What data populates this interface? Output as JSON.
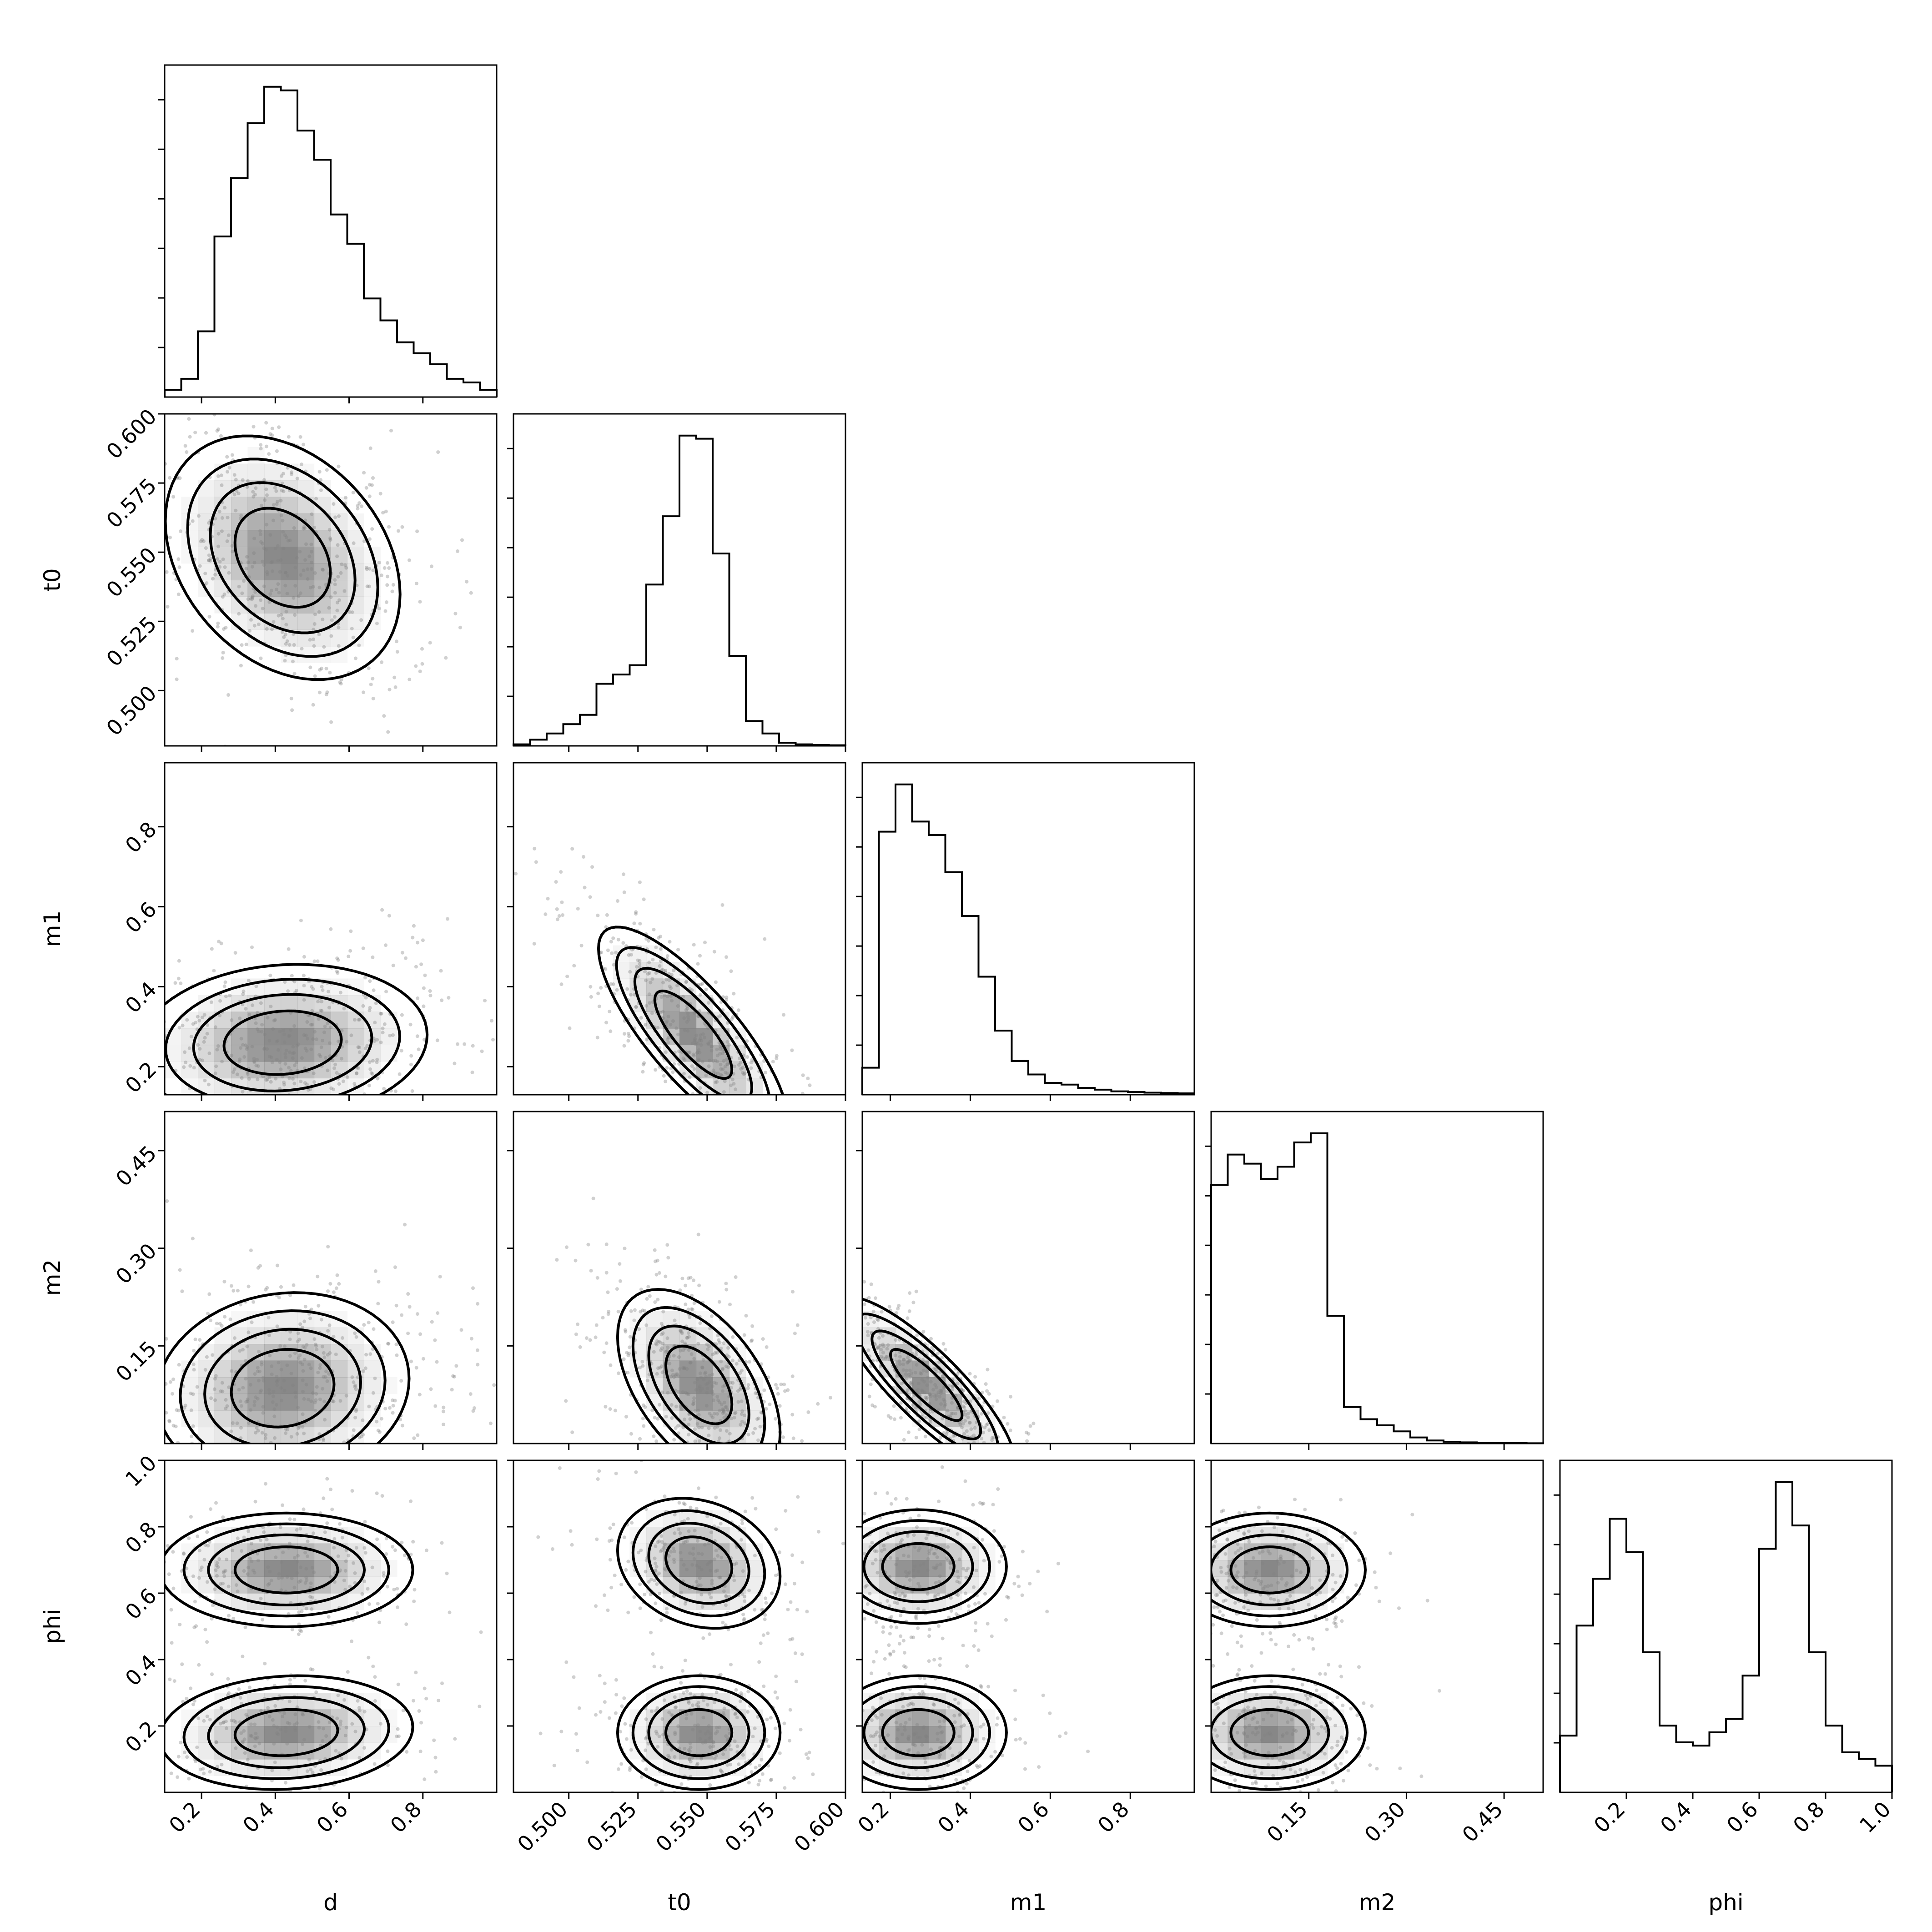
{
  "chart_data": {
    "type": "corner",
    "parameters": [
      {
        "name": "d",
        "range": [
          0.1,
          1.0
        ],
        "ticks": [
          0.2,
          0.4,
          0.6,
          0.8
        ],
        "tick_labels": [
          "0.2",
          "0.4",
          "0.6",
          "0.8"
        ]
      },
      {
        "name": "t0",
        "range": [
          0.48,
          0.6
        ],
        "ticks": [
          0.5,
          0.525,
          0.55,
          0.575,
          0.6
        ],
        "tick_labels": [
          "0.500",
          "0.525",
          "0.550",
          "0.575",
          "0.600"
        ]
      },
      {
        "name": "m1",
        "range": [
          0.13,
          0.96
        ],
        "ticks": [
          0.2,
          0.4,
          0.6,
          0.8
        ],
        "tick_labels": [
          "0.2",
          "0.4",
          "0.6",
          "0.8"
        ]
      },
      {
        "name": "m2",
        "range": [
          0.0,
          0.51
        ],
        "ticks": [
          0.15,
          0.3,
          0.45
        ],
        "tick_labels": [
          "0.15",
          "0.30",
          "0.45"
        ]
      },
      {
        "name": "phi",
        "range": [
          0.0,
          1.0
        ],
        "ticks": [
          0.2,
          0.4,
          0.6,
          0.8,
          1.0
        ],
        "tick_labels": [
          "0.2",
          "0.4",
          "0.6",
          "0.8",
          "1.0"
        ]
      }
    ],
    "histograms": [
      {
        "param": "d",
        "edges_range": [
          0.1,
          1.0
        ],
        "counts": [
          0.02,
          0.05,
          0.18,
          0.44,
          0.6,
          0.75,
          0.85,
          0.84,
          0.73,
          0.65,
          0.5,
          0.42,
          0.27,
          0.21,
          0.15,
          0.12,
          0.09,
          0.05,
          0.04,
          0.02
        ]
      },
      {
        "param": "t0",
        "edges_range": [
          0.48,
          0.6
        ],
        "counts": [
          0.005,
          0.02,
          0.04,
          0.07,
          0.1,
          0.2,
          0.23,
          0.26,
          0.52,
          0.74,
          1.0,
          0.99,
          0.62,
          0.29,
          0.08,
          0.04,
          0.01,
          0.005,
          0.003,
          0.002
        ]
      },
      {
        "param": "m1",
        "edges_range": [
          0.13,
          0.96
        ],
        "counts": [
          0.08,
          0.78,
          0.92,
          0.81,
          0.77,
          0.66,
          0.53,
          0.35,
          0.19,
          0.1,
          0.06,
          0.035,
          0.03,
          0.02,
          0.015,
          0.01,
          0.008,
          0.006,
          0.005,
          0.004
        ]
      },
      {
        "param": "m2",
        "edges_range": [
          0.0,
          0.51
        ],
        "counts": [
          0.85,
          0.95,
          0.92,
          0.87,
          0.91,
          0.99,
          1.02,
          0.42,
          0.12,
          0.08,
          0.06,
          0.04,
          0.02,
          0.01,
          0.006,
          0.004,
          0.003,
          0.002,
          0.002,
          0.001
        ]
      },
      {
        "param": "phi",
        "edges_range": [
          0.0,
          1.0
        ],
        "counts": [
          0.17,
          0.5,
          0.64,
          0.82,
          0.72,
          0.42,
          0.2,
          0.15,
          0.14,
          0.18,
          0.22,
          0.35,
          0.73,
          0.93,
          0.8,
          0.42,
          0.2,
          0.12,
          0.1,
          0.08
        ]
      }
    ],
    "pairs": [
      {
        "x": "d",
        "y": "t0",
        "modes": [
          {
            "center": [
              0.42,
              0.548
            ],
            "sigma": [
              0.13,
              0.018
            ],
            "rho": -0.3,
            "weight": 1
          }
        ]
      },
      {
        "x": "d",
        "y": "m1",
        "modes": [
          {
            "center": [
              0.42,
              0.26
            ],
            "sigma": [
              0.16,
              0.08
            ],
            "rho": 0.1,
            "weight": 1
          }
        ]
      },
      {
        "x": "t0",
        "y": "m1",
        "modes": [
          {
            "center": [
              0.545,
              0.28
            ],
            "sigma": [
              0.014,
              0.11
            ],
            "rho": -0.8,
            "weight": 1
          }
        ]
      },
      {
        "x": "d",
        "y": "m2",
        "modes": [
          {
            "center": [
              0.42,
              0.085
            ],
            "sigma": [
              0.14,
              0.06
            ],
            "rho": 0.1,
            "weight": 1
          }
        ]
      },
      {
        "x": "t0",
        "y": "m2",
        "modes": [
          {
            "center": [
              0.547,
              0.09
            ],
            "sigma": [
              0.012,
              0.06
            ],
            "rho": -0.5,
            "weight": 1
          }
        ]
      },
      {
        "x": "m1",
        "y": "m2",
        "modes": [
          {
            "center": [
              0.29,
              0.09
            ],
            "sigma": [
              0.09,
              0.055
            ],
            "rho": -0.85,
            "weight": 1
          }
        ]
      },
      {
        "x": "d",
        "y": "phi",
        "modes": [
          {
            "center": [
              0.43,
              0.67
            ],
            "sigma": [
              0.14,
              0.07
            ],
            "rho": 0.0,
            "weight": 1
          },
          {
            "center": [
              0.43,
              0.18
            ],
            "sigma": [
              0.14,
              0.07
            ],
            "rho": 0.1,
            "weight": 1
          }
        ]
      },
      {
        "x": "t0",
        "y": "phi",
        "modes": [
          {
            "center": [
              0.547,
              0.69
            ],
            "sigma": [
              0.012,
              0.08
            ],
            "rho": -0.2,
            "weight": 1
          },
          {
            "center": [
              0.547,
              0.18
            ],
            "sigma": [
              0.012,
              0.07
            ],
            "rho": 0.0,
            "weight": 1
          }
        ]
      },
      {
        "x": "m1",
        "y": "phi",
        "modes": [
          {
            "center": [
              0.27,
              0.68
            ],
            "sigma": [
              0.09,
              0.07
            ],
            "rho": 0.0,
            "weight": 1
          },
          {
            "center": [
              0.27,
              0.18
            ],
            "sigma": [
              0.09,
              0.07
            ],
            "rho": 0.0,
            "weight": 1
          }
        ]
      },
      {
        "x": "m2",
        "y": "phi",
        "modes": [
          {
            "center": [
              0.09,
              0.67
            ],
            "sigma": [
              0.06,
              0.07
            ],
            "rho": 0.0,
            "weight": 1
          },
          {
            "center": [
              0.09,
              0.18
            ],
            "sigma": [
              0.06,
              0.07
            ],
            "rho": 0.0,
            "weight": 1
          }
        ]
      }
    ],
    "contour_levels": [
      "0.5-sigma",
      "1-sigma",
      "1.5-sigma",
      "2-sigma"
    ],
    "colors": {
      "line": "#000000",
      "density": "#808080",
      "points": "#777777",
      "background": "#ffffff"
    },
    "grid": false,
    "legend": "none"
  }
}
